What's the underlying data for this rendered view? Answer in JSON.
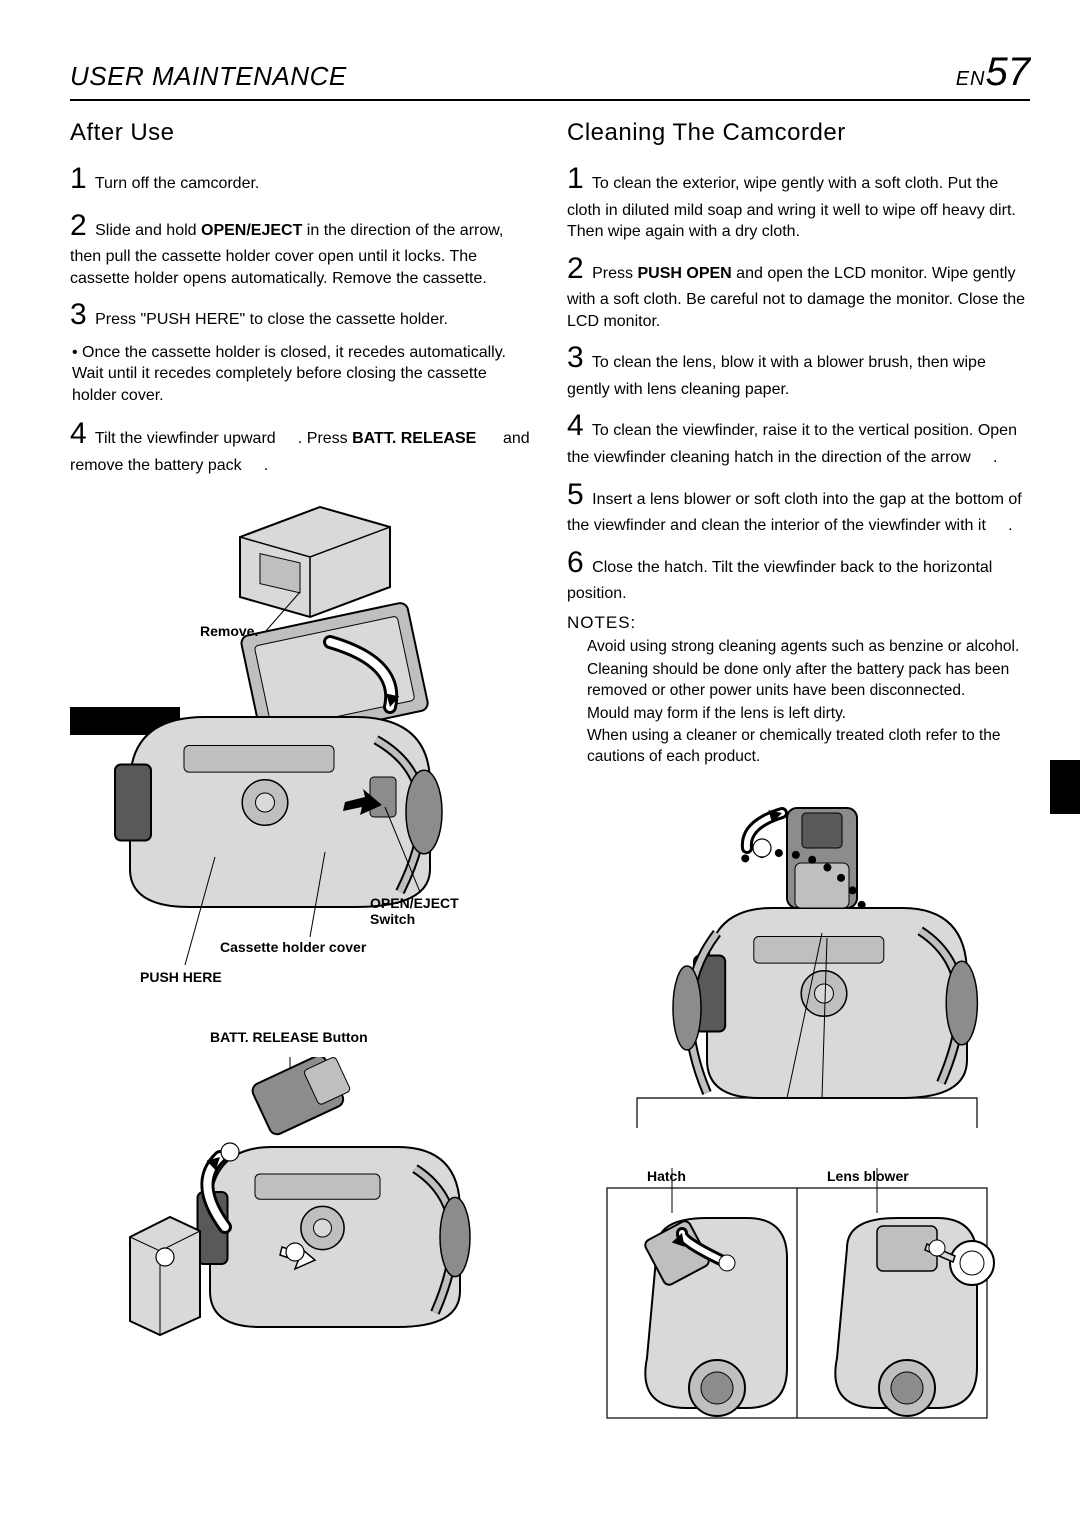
{
  "header": {
    "title": "USER MAINTENANCE",
    "lang": "EN",
    "page": "57"
  },
  "left": {
    "title": "After Use",
    "steps": [
      {
        "n": "1",
        "html": "Turn off the camcorder."
      },
      {
        "n": "2",
        "html": "Slide and hold <b>OPEN/EJECT</b> in the direction of the arrow, then pull the cassette holder cover open until it locks. The cassette holder opens automatically. Remove the cassette."
      },
      {
        "n": "3",
        "html": "Press \"PUSH HERE\" to close the cassette holder."
      },
      {
        "bullet": true,
        "html": "• Once the cassette holder is closed, it recedes automatically. Wait until it recedes completely before closing the cassette holder cover."
      },
      {
        "n": "4",
        "html": "Tilt the viewfinder upward&nbsp;&nbsp;&nbsp;&nbsp;&nbsp;. Press <b>BATT. RELEASE</b>&nbsp;&nbsp;&nbsp;&nbsp;&nbsp;&nbsp;and remove the battery pack&nbsp;&nbsp;&nbsp;&nbsp;&nbsp;."
      }
    ],
    "labels": {
      "remove": "Remove.",
      "openEject": "OPEN/EJECT Switch",
      "cassetteCover": "Cassette holder cover",
      "pushHere": "PUSH HERE",
      "battRelease": "BATT. RELEASE Button"
    }
  },
  "right": {
    "title": "Cleaning The Camcorder",
    "steps": [
      {
        "n": "1",
        "html": "To clean the exterior, wipe gently with a soft cloth. Put the cloth in diluted mild soap and wring it well to wipe off heavy dirt. Then wipe again with a dry cloth."
      },
      {
        "n": "2",
        "html": "Press <b>PUSH OPEN</b> and open the LCD monitor. Wipe gently with a soft cloth.  Be careful not to damage the monitor.  Close the LCD monitor."
      },
      {
        "n": "3",
        "html": "To clean the lens, blow it with a blower brush, then wipe gently with lens cleaning paper."
      },
      {
        "n": "4",
        "html": "To clean the viewfinder, raise it to the vertical position. Open the viewfinder cleaning hatch in the direction of the arrow&nbsp;&nbsp;&nbsp;&nbsp;&nbsp;."
      },
      {
        "n": "5",
        "html": "Insert a lens blower or soft cloth into the gap at the bottom of the viewfinder and clean the interior of the viewfinder with it&nbsp;&nbsp;&nbsp;&nbsp;&nbsp;."
      },
      {
        "n": "6",
        "html": "Close the hatch. Tilt the viewfinder back to the horizontal position."
      }
    ],
    "notesHeading": "NOTES:",
    "notes": [
      "Avoid using strong cleaning agents such as benzine or alcohol.",
      "Cleaning should be done only after the battery pack has been removed or other power units have been disconnected.",
      "Mould may form if the lens is left dirty.",
      "When using a cleaner or chemically treated cloth refer to the cautions of each product."
    ],
    "labels": {
      "hatch": "Hatch",
      "lensBlower": "Lens blower"
    }
  },
  "colors": {
    "stroke": "#000000",
    "fillLight": "#d9d9d9",
    "fillMid": "#bfbfbf",
    "fillDark": "#8c8c8c",
    "fillVeryDark": "#595959",
    "white": "#ffffff"
  }
}
